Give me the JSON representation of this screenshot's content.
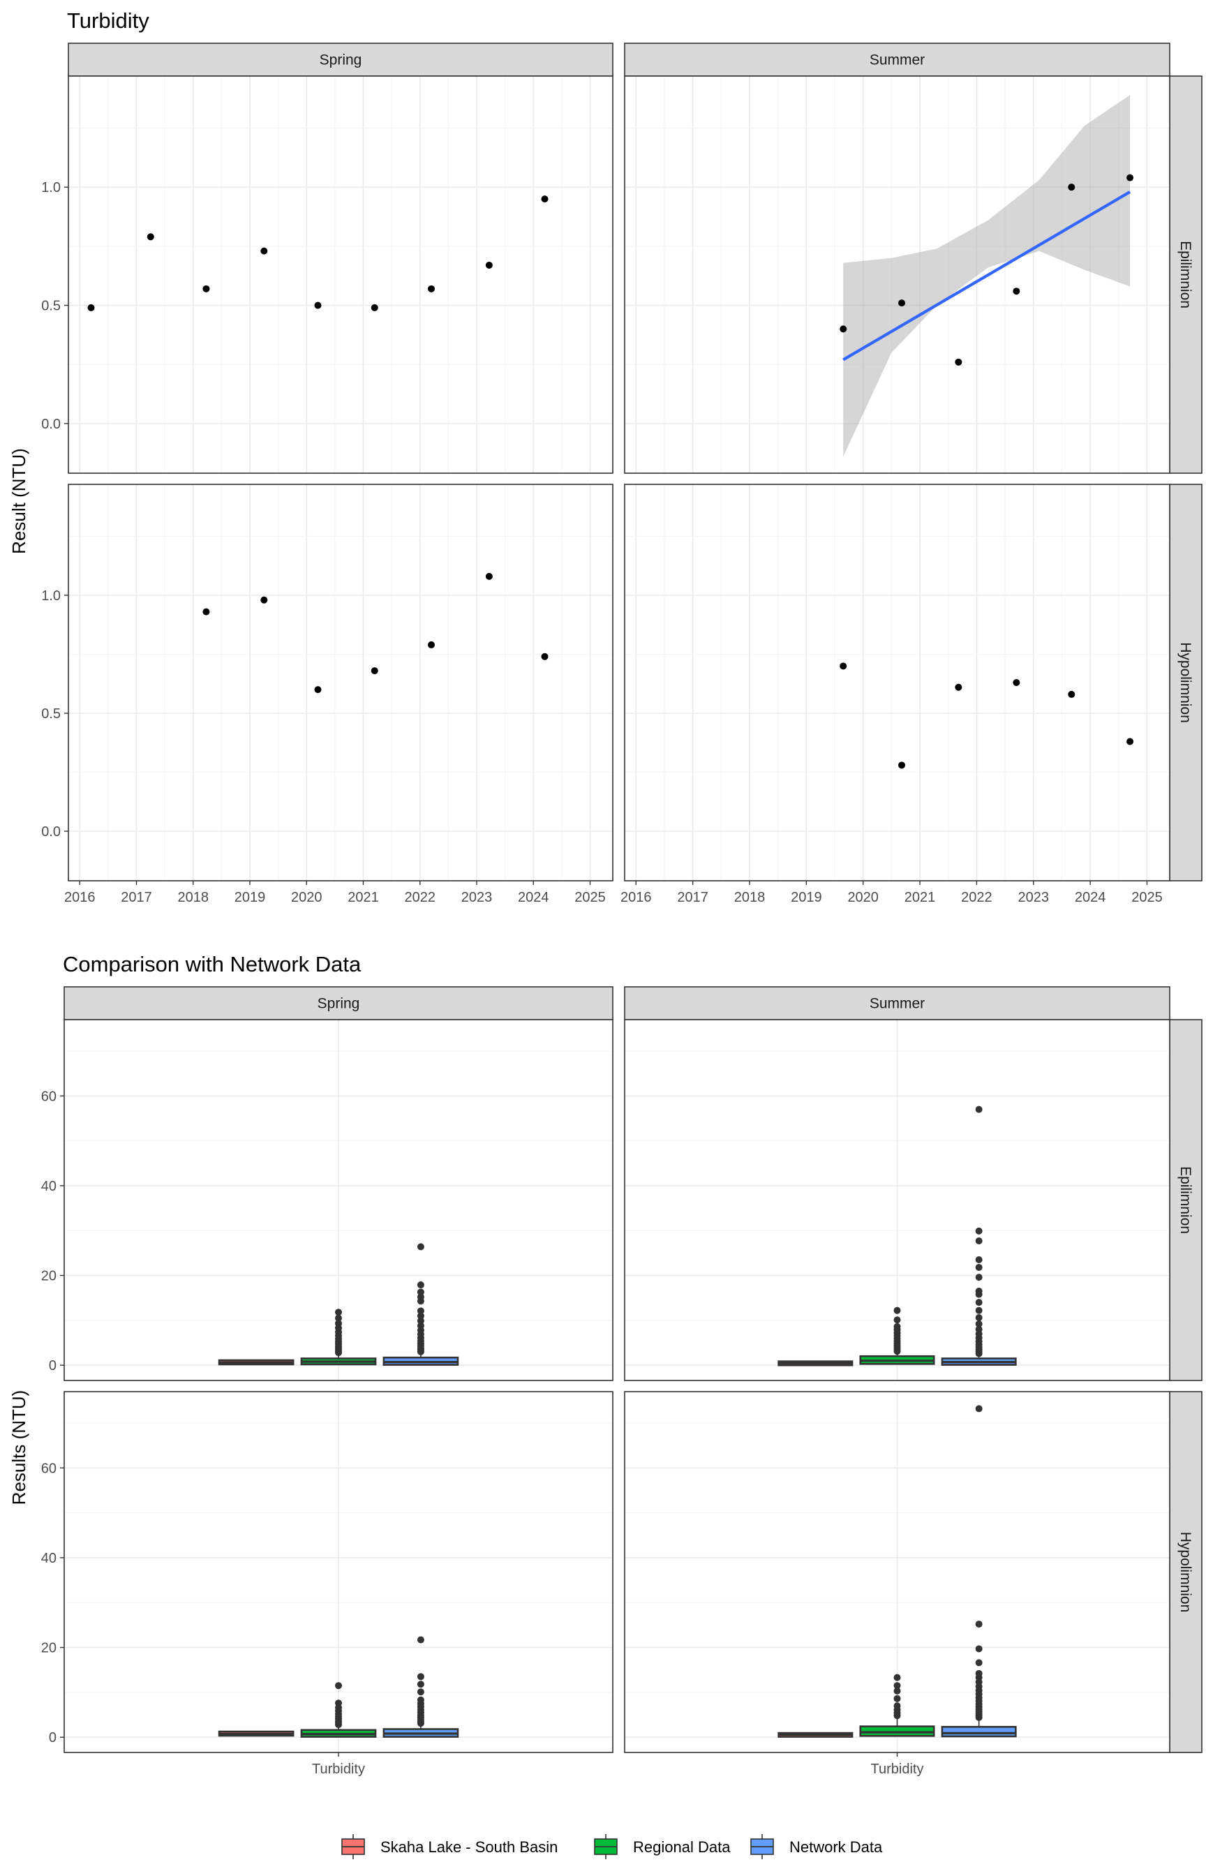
{
  "figure": {
    "top_title": "Turbidity",
    "bottom_title": "Comparison with Network Data",
    "top_ylabel": "Result (NTU)",
    "bottom_ylabel": "Results (NTU)",
    "col_labels": [
      "Spring",
      "Summer"
    ],
    "row_labels": [
      "Epilimnion",
      "Hypolimnion"
    ]
  },
  "legend": {
    "position": "bottom",
    "items": [
      {
        "label": "Skaha Lake - South Basin",
        "color": "#f8766d"
      },
      {
        "label": "Regional Data",
        "color": "#00ba38"
      },
      {
        "label": "Network Data",
        "color": "#619cff"
      }
    ]
  },
  "chart_data": [
    {
      "type": "scatter",
      "title": "Turbidity",
      "xlabel": "",
      "ylabel": "Result (NTU)",
      "xlim": [
        2015.8,
        2025.4
      ],
      "ylim": [
        -0.21,
        1.47
      ],
      "x_ticks": [
        2016,
        2017,
        2018,
        2019,
        2020,
        2021,
        2022,
        2023,
        2024,
        2025
      ],
      "y_ticks": [
        0.0,
        0.5,
        1.0
      ],
      "y_tick_labels": [
        "0.0",
        "0.5",
        "1.0"
      ],
      "grid": true,
      "facets": [
        {
          "col": "Spring",
          "row": "Epilimnion",
          "x": [
            2016.2,
            2017.25,
            2018.23,
            2019.25,
            2020.2,
            2021.2,
            2022.2,
            2023.22,
            2024.2
          ],
          "y": [
            0.49,
            0.79,
            0.57,
            0.73,
            0.5,
            0.49,
            0.57,
            0.67,
            0.95
          ]
        },
        {
          "col": "Summer",
          "row": "Epilimnion",
          "x": [
            2019.65,
            2020.68,
            2021.68,
            2022.7,
            2023.67,
            2024.7
          ],
          "y": [
            0.4,
            0.51,
            0.26,
            0.56,
            1.0,
            1.04
          ],
          "trend": {
            "x": [
              2019.65,
              2024.7
            ],
            "y": [
              0.27,
              0.98
            ],
            "ci_x": [
              2019.65,
              2020.5,
              2021.3,
              2022.2,
              2023.1,
              2023.9,
              2024.7
            ],
            "ci_lower": [
              -0.14,
              0.3,
              0.5,
              0.66,
              0.73,
              0.65,
              0.58
            ],
            "ci_upper": [
              0.68,
              0.7,
              0.74,
              0.86,
              1.03,
              1.26,
              1.39
            ]
          }
        },
        {
          "col": "Spring",
          "row": "Hypolimnion",
          "x": [
            2018.23,
            2019.25,
            2020.2,
            2021.2,
            2022.2,
            2023.22,
            2024.2
          ],
          "y": [
            0.93,
            0.98,
            0.6,
            0.68,
            0.79,
            1.08,
            0.74
          ]
        },
        {
          "col": "Summer",
          "row": "Hypolimnion",
          "x": [
            2019.65,
            2020.68,
            2021.68,
            2022.7,
            2023.67,
            2024.7
          ],
          "y": [
            0.7,
            0.28,
            0.61,
            0.63,
            0.58,
            0.38
          ]
        }
      ]
    },
    {
      "type": "box",
      "title": "Comparison with Network Data",
      "xlabel": "",
      "ylabel": "Results (NTU)",
      "category": "Turbidity",
      "ylim": [
        -3.4,
        77
      ],
      "y_ticks": [
        0,
        20,
        40,
        60
      ],
      "grid": true,
      "series_order": [
        "Skaha Lake - South Basin",
        "Regional Data",
        "Network Data"
      ],
      "facets": [
        {
          "col": "Spring",
          "row": "Epilimnion",
          "boxes": [
            {
              "series": "Skaha Lake - South Basin",
              "q1": 0.5,
              "median": 0.6,
              "q3": 0.8,
              "whisker_low": 0.4,
              "whisker_high": 0.9,
              "outliers": []
            },
            {
              "series": "Regional Data",
              "q1": 0.5,
              "median": 0.8,
              "q3": 1.2,
              "whisker_low": 0.1,
              "whisker_high": 2.5,
              "outliers": [
                2.8,
                3.1,
                3.5,
                3.9,
                4.3,
                4.8,
                5.3,
                5.9,
                6.6,
                7.4,
                8.3,
                9.3,
                10.5,
                11.8
              ]
            },
            {
              "series": "Network Data",
              "q1": 0.4,
              "median": 0.7,
              "q3": 1.4,
              "whisker_low": 0.1,
              "whisker_high": 2.7,
              "outliers": [
                3.0,
                3.4,
                3.8,
                4.3,
                4.8,
                5.4,
                6.1,
                6.9,
                7.8,
                8.8,
                9.9,
                11.0,
                12.1,
                14.3,
                15.2,
                16.3,
                17.9,
                26.4
              ]
            }
          ]
        },
        {
          "col": "Summer",
          "row": "Epilimnion",
          "boxes": [
            {
              "series": "Skaha Lake - South Basin",
              "q1": 0.3,
              "median": 0.45,
              "q3": 0.55,
              "whisker_low": 0.26,
              "whisker_high": 1.04,
              "outliers": []
            },
            {
              "series": "Regional Data",
              "q1": 0.6,
              "median": 1.0,
              "q3": 1.7,
              "whisker_low": 0.1,
              "whisker_high": 2.8,
              "outliers": [
                3.1,
                3.5,
                3.9,
                4.4,
                4.9,
                5.4,
                6.0,
                6.6,
                7.2,
                7.9,
                8.6,
                10.1,
                12.2
              ]
            },
            {
              "series": "Network Data",
              "q1": 0.4,
              "median": 0.7,
              "q3": 1.2,
              "whisker_low": 0.1,
              "whisker_high": 2.3,
              "outliers": [
                2.6,
                3.0,
                3.5,
                4.0,
                4.6,
                5.3,
                6.1,
                7.0,
                8.0,
                9.2,
                10.6,
                12.2,
                14.0,
                15.8,
                16.5,
                19.6,
                21.8,
                23.5,
                27.7,
                29.9,
                57.0
              ]
            }
          ]
        },
        {
          "col": "Spring",
          "row": "Hypolimnion",
          "boxes": [
            {
              "series": "Skaha Lake - South Basin",
              "q1": 0.65,
              "median": 0.75,
              "q3": 0.95,
              "whisker_low": 0.6,
              "whisker_high": 1.08,
              "outliers": []
            },
            {
              "series": "Regional Data",
              "q1": 0.4,
              "median": 0.7,
              "q3": 1.3,
              "whisker_low": 0.1,
              "whisker_high": 2.5,
              "outliers": [
                2.8,
                3.2,
                3.6,
                4.1,
                4.6,
                5.2,
                5.9,
                6.6,
                7.6,
                11.5
              ]
            },
            {
              "series": "Network Data",
              "q1": 0.4,
              "median": 0.8,
              "q3": 1.5,
              "whisker_low": 0.1,
              "whisker_high": 2.8,
              "outliers": [
                3.1,
                3.5,
                3.9,
                4.4,
                4.9,
                5.5,
                6.1,
                6.8,
                7.5,
                8.3,
                10.1,
                11.8,
                13.5,
                21.7
              ]
            }
          ]
        },
        {
          "col": "Summer",
          "row": "Hypolimnion",
          "boxes": [
            {
              "series": "Skaha Lake - South Basin",
              "q1": 0.4,
              "median": 0.58,
              "q3": 0.63,
              "whisker_low": 0.28,
              "whisker_high": 0.7,
              "outliers": []
            },
            {
              "series": "Regional Data",
              "q1": 0.6,
              "median": 1.1,
              "q3": 2.1,
              "whisker_low": 0.1,
              "whisker_high": 4.2,
              "outliers": [
                4.8,
                5.4,
                6.1,
                7.0,
                8.6,
                10.3,
                11.5,
                13.3
              ]
            },
            {
              "series": "Network Data",
              "q1": 0.5,
              "median": 0.9,
              "q3": 2.0,
              "whisker_low": 0.1,
              "whisker_high": 4.0,
              "outliers": [
                4.4,
                4.8,
                5.2,
                5.7,
                6.2,
                6.8,
                7.4,
                8.1,
                8.8,
                9.6,
                10.4,
                11.3,
                12.3,
                13.3,
                14.2,
                16.6,
                19.7,
                25.2,
                73.2
              ]
            }
          ]
        }
      ]
    }
  ]
}
